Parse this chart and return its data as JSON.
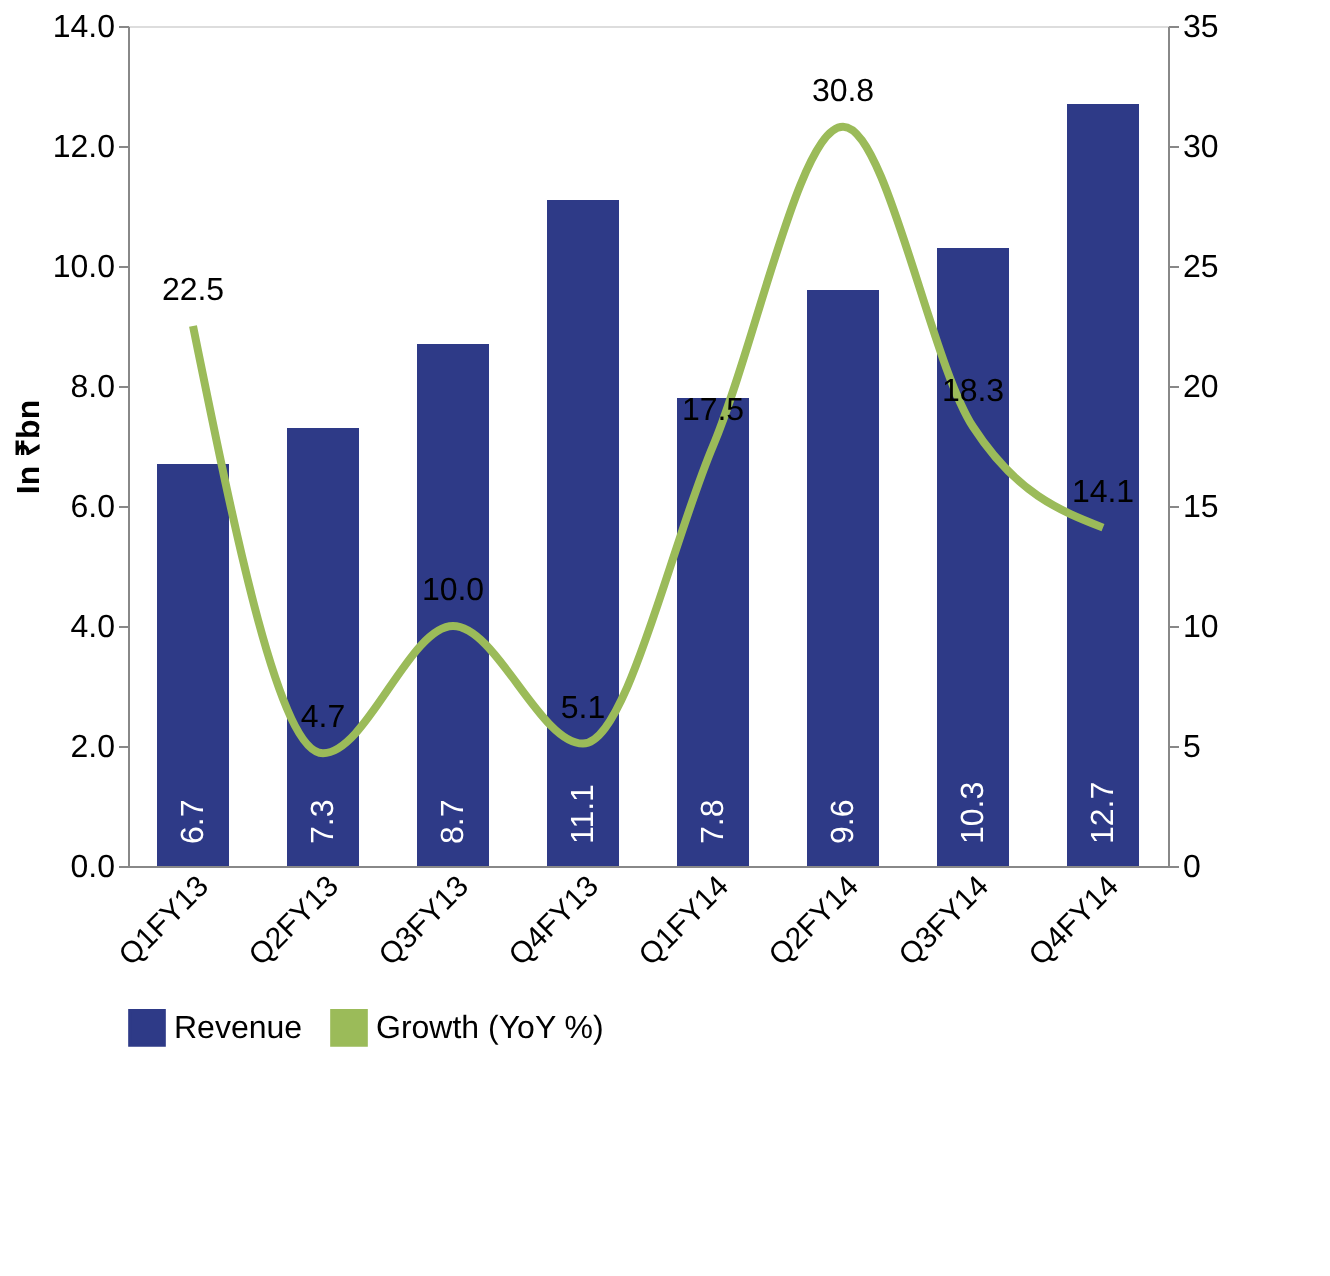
{
  "chart_data": {
    "type": "bar",
    "ylabel": "In ₹bn",
    "categories": [
      "Q1FY13",
      "Q2FY13",
      "Q3FY13",
      "Q4FY13",
      "Q1FY14",
      "Q2FY14",
      "Q3FY14",
      "Q4FY14"
    ],
    "series": [
      {
        "name": "Revenue",
        "color": "#2e3a87",
        "values": [
          6.7,
          7.3,
          8.7,
          11.1,
          7.8,
          9.6,
          10.3,
          12.7
        ],
        "value_labels": [
          "6.7",
          "7.3",
          "8.7",
          "11.1",
          "7.8",
          "9.6",
          "10.3",
          "12.7"
        ]
      },
      {
        "name": "Growth (YoY %)",
        "type": "line",
        "axis": "y2",
        "color": "#9bbb59",
        "values": [
          22.5,
          4.7,
          10.0,
          5.1,
          17.5,
          30.8,
          18.3,
          14.1
        ],
        "value_labels": [
          "22.5",
          "4.7",
          "10.0",
          "5.1",
          "17.5",
          "30.8",
          "18.3",
          "14.1"
        ]
      }
    ],
    "ylim": [
      0,
      14
    ],
    "yticks": [
      {
        "value": 0,
        "label": "0.0"
      },
      {
        "value": 2,
        "label": "2.0"
      },
      {
        "value": 4,
        "label": "4.0"
      },
      {
        "value": 6,
        "label": "6.0"
      },
      {
        "value": 8,
        "label": "8.0"
      },
      {
        "value": 10,
        "label": "10.0"
      },
      {
        "value": 12,
        "label": "12.0"
      },
      {
        "value": 14,
        "label": "14.0"
      }
    ],
    "y2lim": [
      0,
      35
    ],
    "y2ticks": [
      0,
      5,
      10,
      15,
      20,
      25,
      30,
      35
    ],
    "legend": "bottom",
    "grid": false,
    "marker": "none",
    "line_style": "solid"
  }
}
